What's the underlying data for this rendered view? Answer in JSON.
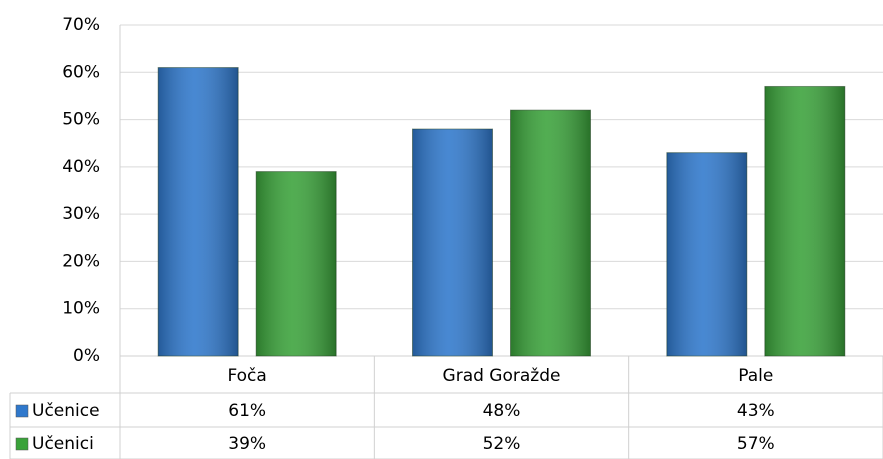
{
  "chart_data": {
    "type": "bar",
    "categories": [
      "Foča",
      "Grad Goražde",
      "Pale"
    ],
    "series": [
      {
        "name": "Učenice",
        "color": "#2f78cc",
        "values": [
          61,
          48,
          43
        ],
        "value_labels": [
          "61%",
          "48%",
          "43%"
        ]
      },
      {
        "name": "Učenici",
        "color": "#3aa23a",
        "values": [
          39,
          52,
          57
        ],
        "value_labels": [
          "39%",
          "52%",
          "57%"
        ]
      }
    ],
    "ylim": [
      0,
      70
    ],
    "yticks": [
      {
        "value": 0,
        "label": "0%"
      },
      {
        "value": 10,
        "label": "10%"
      },
      {
        "value": 20,
        "label": "20%"
      },
      {
        "value": 30,
        "label": "30%"
      },
      {
        "value": 40,
        "label": "40%"
      },
      {
        "value": 50,
        "label": "50%"
      },
      {
        "value": 60,
        "label": "60%"
      },
      {
        "value": 70,
        "label": "70%"
      }
    ],
    "grid": true
  }
}
